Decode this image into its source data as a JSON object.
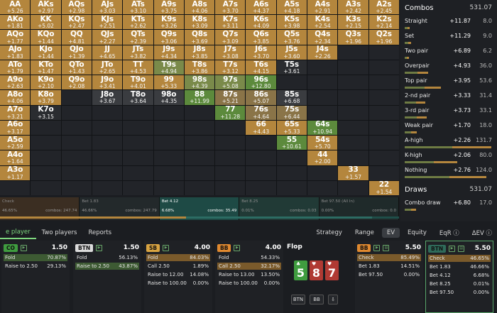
{
  "colors": {
    "gold": "#b4863d",
    "green": "#5c8a3c",
    "dark": "#222429",
    "red": "#b0473f",
    "teal": "#2f6b5a"
  },
  "grid": [
    [
      [
        "AA",
        "+5.26"
      ],
      [
        "AKs",
        "+2.97"
      ],
      [
        "AQs",
        "+2.98"
      ],
      [
        "AJs",
        "+3.03"
      ],
      [
        "ATs",
        "+3.10"
      ],
      [
        "A9s",
        "+3.75"
      ],
      [
        "A8s",
        "+4.06"
      ],
      [
        "A7s",
        "+3.70"
      ],
      [
        "A6s",
        "+4.37"
      ],
      [
        "A5s",
        "+4.18"
      ],
      [
        "A4s",
        "+2.91"
      ],
      [
        "A3s",
        "+2.42"
      ],
      [
        "A2s",
        "+2.45"
      ]
    ],
    [
      [
        "AKo",
        "+1.81"
      ],
      [
        "KK",
        "+5.02"
      ],
      [
        "KQs",
        "+2.47"
      ],
      [
        "KJs",
        "+2.51"
      ],
      [
        "KTs",
        "+2.62"
      ],
      [
        "K9s",
        "+3.26"
      ],
      [
        "K8s",
        "+3.09"
      ],
      [
        "K7s",
        "+3.11"
      ],
      [
        "K6s",
        "+4.09"
      ],
      [
        "K5s",
        "+3.98"
      ],
      [
        "K4s",
        "+2.54"
      ],
      [
        "K3s",
        "+2.15"
      ],
      [
        "K2s",
        "+2.14"
      ]
    ],
    [
      [
        "AQo",
        "+1.77"
      ],
      [
        "KQo",
        "+1.44"
      ],
      [
        "QQ",
        "+4.81"
      ],
      [
        "QJs",
        "+2.27"
      ],
      [
        "QTs",
        "+2.39"
      ],
      [
        "Q9s",
        "+3.06"
      ],
      [
        "Q8s",
        "+3.69"
      ],
      [
        "Q7s",
        "+3.09"
      ],
      [
        "Q6s",
        "+3.85"
      ],
      [
        "Q5s",
        "+3.76"
      ],
      [
        "Q4s",
        "+2.34"
      ],
      [
        "Q3s",
        "+1.96"
      ],
      [
        "Q2s",
        "+1.96"
      ]
    ],
    [
      [
        "AJo",
        "+1.83"
      ],
      [
        "KJo",
        "+1.44"
      ],
      [
        "QJo",
        "+1.39"
      ],
      [
        "JJ",
        "+4.65"
      ],
      [
        "JTs",
        "+3.82"
      ],
      [
        "J9s",
        "+4.34"
      ],
      [
        "J8s",
        "+3.85"
      ],
      [
        "J7s",
        "+3.08"
      ],
      [
        "J6s",
        "+3.70"
      ],
      [
        "J5s",
        "+3.60"
      ],
      [
        "J4s",
        "+2.26"
      ],
      [
        "",
        ""
      ],
      [
        "",
        ""
      ]
    ],
    [
      [
        "ATo",
        "+1.79"
      ],
      [
        "KTo",
        "+1.47"
      ],
      [
        "QTo",
        "+1.43"
      ],
      [
        "JTo",
        "+2.65"
      ],
      [
        "TT",
        "+4.53"
      ],
      [
        "T9s",
        "+4.94"
      ],
      [
        "T8s",
        "+3.86"
      ],
      [
        "T7s",
        "+3.12"
      ],
      [
        "T6s",
        "+4.15"
      ],
      [
        "T5s",
        "+3.61"
      ],
      [
        "",
        ""
      ],
      [
        "",
        ""
      ],
      [
        "",
        ""
      ]
    ],
    [
      [
        "A9o",
        "+2.63"
      ],
      [
        "K9o",
        "+2.10"
      ],
      [
        "Q9o",
        "+2.08"
      ],
      [
        "J9o",
        "+3.41"
      ],
      [
        "T9o",
        "+4.01"
      ],
      [
        "99",
        "+5.33"
      ],
      [
        "98s",
        "+4.39"
      ],
      [
        "97s",
        "+5.08"
      ],
      [
        "96s",
        "+12.80"
      ],
      [
        "",
        ""
      ],
      [
        "",
        ""
      ],
      [
        "",
        ""
      ],
      [
        "",
        ""
      ]
    ],
    [
      [
        "A8o",
        "+4.06"
      ],
      [
        "K8o",
        "+3.79"
      ],
      [
        "",
        ""
      ],
      [
        "J8o",
        "+3.67"
      ],
      [
        "T8o",
        "+3.64"
      ],
      [
        "98o",
        "+4.35"
      ],
      [
        "88",
        "+11.99"
      ],
      [
        "87s",
        "+5.21"
      ],
      [
        "86s",
        "+5.07"
      ],
      [
        "85s",
        "+6.68"
      ],
      [
        "",
        ""
      ],
      [
        "",
        ""
      ],
      [
        "",
        ""
      ]
    ],
    [
      [
        "A7o",
        "+3.21"
      ],
      [
        "K7o",
        "+3.15"
      ],
      [
        "",
        ""
      ],
      [
        "",
        ""
      ],
      [
        "",
        ""
      ],
      [
        "",
        ""
      ],
      [
        "",
        ""
      ],
      [
        "77",
        "+11.28"
      ],
      [
        "76s",
        "+4.64"
      ],
      [
        "75s",
        "+6.44"
      ],
      [
        "",
        ""
      ],
      [
        "",
        ""
      ],
      [
        "",
        ""
      ]
    ],
    [
      [
        "A6o",
        "+3.17"
      ],
      [
        "",
        ""
      ],
      [
        "",
        ""
      ],
      [
        "",
        ""
      ],
      [
        "",
        ""
      ],
      [
        "",
        ""
      ],
      [
        "",
        ""
      ],
      [
        "",
        ""
      ],
      [
        "66",
        "+4.43"
      ],
      [
        "65s",
        "+5.33"
      ],
      [
        "64s",
        "+10.94"
      ],
      [
        "",
        ""
      ],
      [
        "",
        ""
      ]
    ],
    [
      [
        "A5o",
        "+2.59"
      ],
      [
        "",
        ""
      ],
      [
        "",
        ""
      ],
      [
        "",
        ""
      ],
      [
        "",
        ""
      ],
      [
        "",
        ""
      ],
      [
        "",
        ""
      ],
      [
        "",
        ""
      ],
      [
        "",
        ""
      ],
      [
        "55",
        "+10.61"
      ],
      [
        "54s",
        "+5.70"
      ],
      [
        "",
        ""
      ],
      [
        "",
        ""
      ]
    ],
    [
      [
        "A4o",
        "+1.64"
      ],
      [
        "",
        ""
      ],
      [
        "",
        ""
      ],
      [
        "",
        ""
      ],
      [
        "",
        ""
      ],
      [
        "",
        ""
      ],
      [
        "",
        ""
      ],
      [
        "",
        ""
      ],
      [
        "",
        ""
      ],
      [
        "",
        ""
      ],
      [
        "44",
        "+2.00"
      ],
      [
        "",
        ""
      ],
      [
        "",
        ""
      ]
    ],
    [
      [
        "A3o",
        "+1.17"
      ],
      [
        "",
        ""
      ],
      [
        "",
        ""
      ],
      [
        "",
        ""
      ],
      [
        "",
        ""
      ],
      [
        "",
        ""
      ],
      [
        "",
        ""
      ],
      [
        "",
        ""
      ],
      [
        "",
        ""
      ],
      [
        "",
        ""
      ],
      [
        "",
        ""
      ],
      [
        "33",
        "+1.57"
      ],
      [
        "",
        ""
      ]
    ],
    [
      [
        "",
        ""
      ],
      [
        "",
        ""
      ],
      [
        "",
        ""
      ],
      [
        "",
        ""
      ],
      [
        "",
        ""
      ],
      [
        "",
        ""
      ],
      [
        "",
        ""
      ],
      [
        "",
        ""
      ],
      [
        "",
        ""
      ],
      [
        "",
        ""
      ],
      [
        "",
        ""
      ],
      [
        "",
        ""
      ],
      [
        "22",
        "+1.54"
      ]
    ]
  ],
  "panel": {
    "combos_title": "Combos",
    "combos_count": "531.07",
    "rows": [
      {
        "label": "Straight",
        "ev": "+11.87",
        "count": "8.0",
        "fill": 0.06
      },
      {
        "label": "Set",
        "ev": "+11.29",
        "count": "9.0",
        "fill": 0.07
      },
      {
        "label": "Two pair",
        "ev": "+6.89",
        "count": "6.2",
        "fill": 0.05
      },
      {
        "label": "Overpair",
        "ev": "+4.93",
        "count": "36.0",
        "fill": 0.27
      },
      {
        "label": "Top pair",
        "ev": "+3.95",
        "count": "53.6",
        "fill": 0.41
      },
      {
        "label": "2-nd pair",
        "ev": "+3.33",
        "count": "31.4",
        "fill": 0.24
      },
      {
        "label": "3-rd pair",
        "ev": "+3.73",
        "count": "33.1",
        "fill": 0.25
      },
      {
        "label": "Weak pair",
        "ev": "+1.70",
        "count": "18.0",
        "fill": 0.14
      },
      {
        "label": "A-high",
        "ev": "+2.26",
        "count": "131.7",
        "fill": 1.0
      },
      {
        "label": "K-high",
        "ev": "+2.06",
        "count": "80.0",
        "fill": 0.61
      },
      {
        "label": "Nothing",
        "ev": "+2.76",
        "count": "124.0",
        "fill": 0.94
      }
    ],
    "draws_title": "Draws",
    "draws_count": "531.07",
    "draws": [
      {
        "label": "Combo draw",
        "ev": "+6.80",
        "count": "17.0",
        "fill": 0.13
      }
    ]
  },
  "strip": [
    {
      "name": "Check",
      "pct": "46.65%",
      "combos": "combos: 247.74",
      "active": false
    },
    {
      "name": "Bet 1.83",
      "pct": "46.66%",
      "combos": "combos: 247.79",
      "active": false
    },
    {
      "name": "Bet 4.12",
      "pct": "6.68%",
      "combos": "combos: 35.49",
      "active": true
    },
    {
      "name": "Bet 8.25",
      "pct": "0.01%",
      "combos": "combos: 0.03",
      "active": false
    },
    {
      "name": "Bet 97.50 (All In)",
      "pct": "0.00%",
      "combos": "combos: 0.0",
      "active": false
    }
  ],
  "tabs": {
    "left": [
      "e player",
      "Two players",
      "Reports"
    ],
    "right": [
      "Strategy",
      "Range",
      "EV",
      "Equity",
      "EqR ⓘ",
      "ΔEV ⓘ"
    ]
  },
  "players": [
    {
      "pos": "CO",
      "stack": "1.50",
      "color": "#3f9c3f",
      "actions": [
        [
          "Fold",
          "70.87%"
        ],
        [
          "Raise to 2.50",
          "29.13%"
        ]
      ],
      "hl": 0
    },
    {
      "pos": "BTN",
      "stack": "1.50",
      "color": "#dcdcdc",
      "actions": [
        [
          "Fold",
          "56.13%"
        ],
        [
          "Raise to 2.50",
          "43.87%"
        ]
      ],
      "hl": 1
    },
    {
      "pos": "SB",
      "stack": "4.00",
      "color": "#d9a441",
      "actions": [
        [
          "Fold",
          "84.03%"
        ],
        [
          "Call 2.50",
          "1.89%"
        ],
        [
          "Raise to 12.00",
          "14.08%"
        ],
        [
          "Raise to 100.00",
          "0.00%"
        ]
      ],
      "hl": 0
    },
    {
      "pos": "BB",
      "stack": "4.00",
      "color": "#e0892f",
      "actions": [
        [
          "Fold",
          "54.33%"
        ],
        [
          "Call 2.50",
          "32.17%"
        ],
        [
          "Raise to 13.00",
          "13.50%"
        ],
        [
          "Raise to 100.00",
          "0.00%"
        ]
      ],
      "hl": 1
    }
  ],
  "flop": {
    "title": "Flop",
    "cards": [
      [
        "5",
        "♣",
        "#3f9c3f"
      ],
      [
        "8",
        "♥",
        "#b03a33"
      ],
      [
        "7",
        "♥",
        "#b03a33"
      ]
    ],
    "buttons": [
      "BTN",
      "BB",
      "⇩"
    ]
  },
  "bb_panel": {
    "pos": "BB",
    "stack": "5.50",
    "actions": [
      [
        "Check",
        "85.49%"
      ],
      [
        "Bet 1.83",
        "14.51%"
      ],
      [
        "Bet 97.50",
        "0.00%"
      ]
    ]
  },
  "btn_panel": {
    "pos": "BTN",
    "stack": "5.50",
    "actions": [
      [
        "Check",
        "46.65%"
      ],
      [
        "Bet 1.83",
        "46.66%"
      ],
      [
        "Bet 4.12",
        "6.68%"
      ],
      [
        "Bet 8.25",
        "0.01%"
      ],
      [
        "Bet 97.50",
        "0.00%"
      ]
    ]
  }
}
